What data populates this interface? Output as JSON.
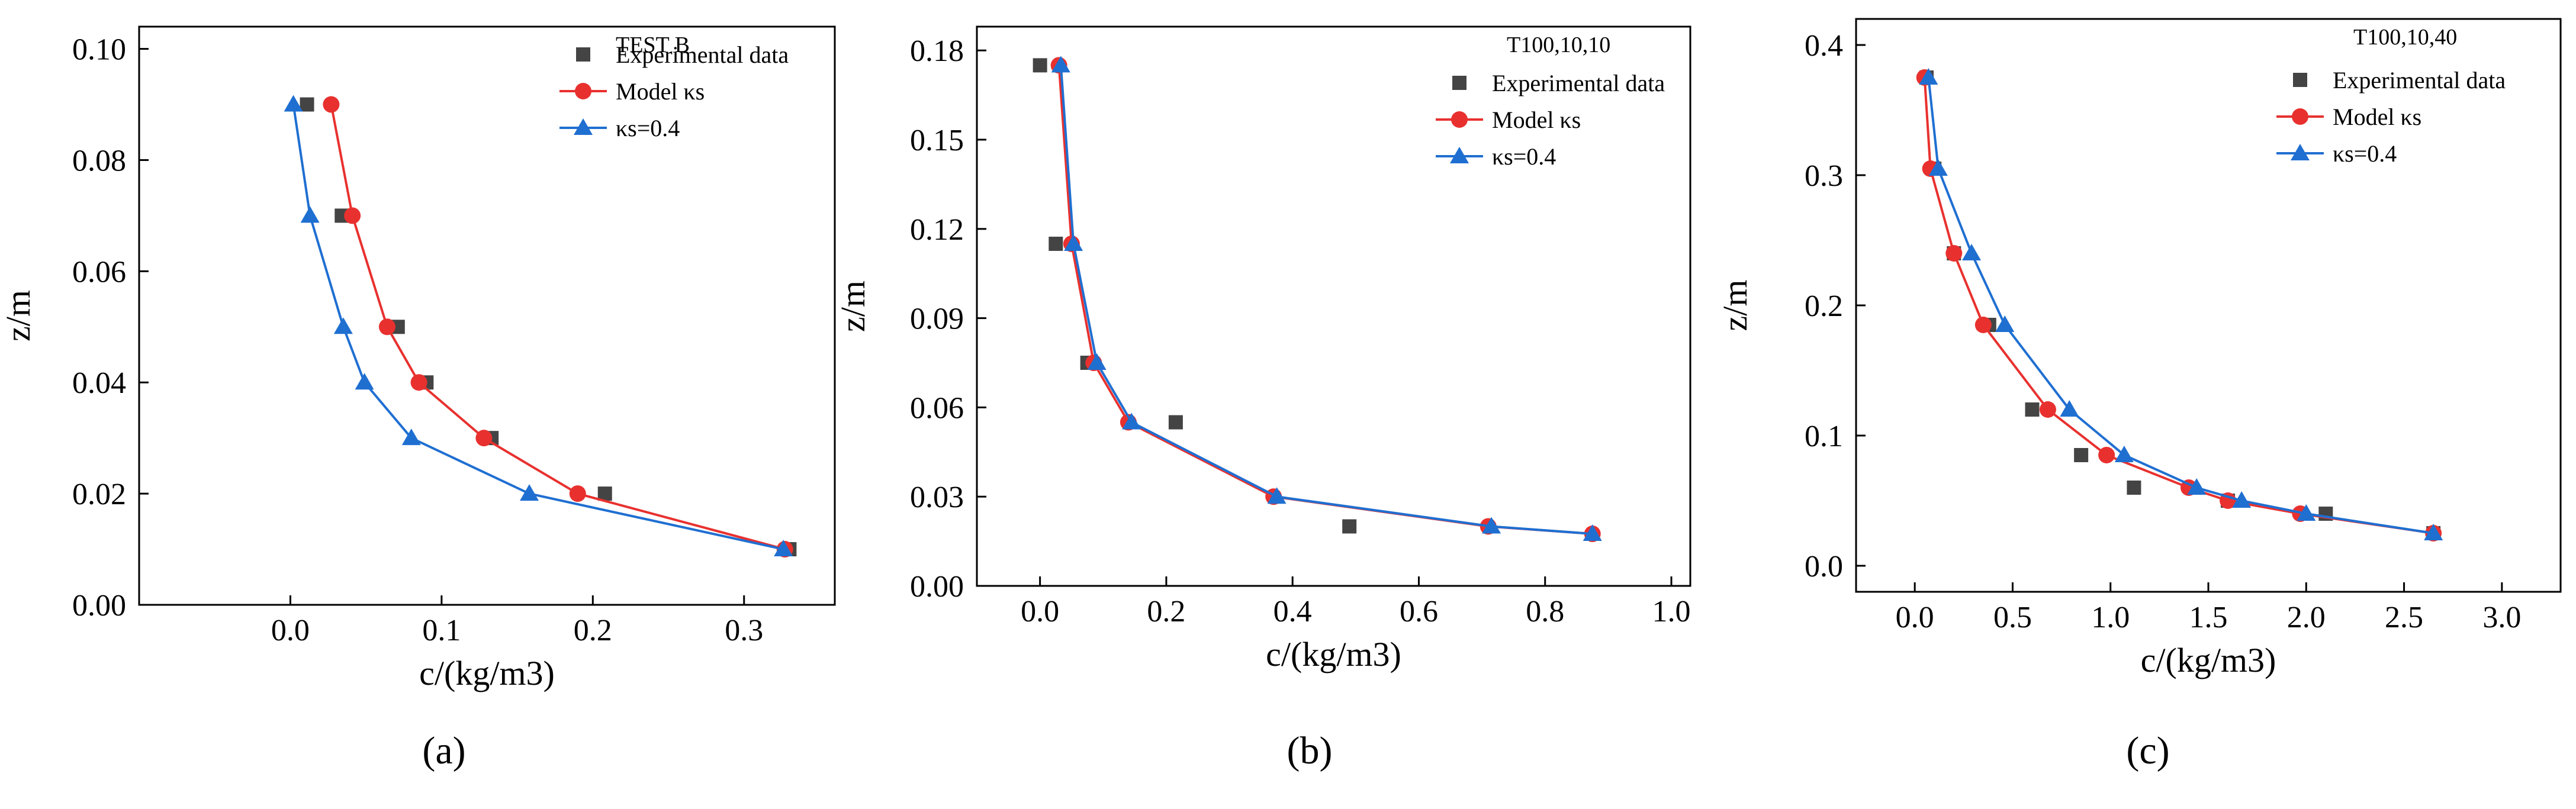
{
  "chart_data": [
    {
      "type": "line",
      "panel_label": "(a)",
      "title": "TEST B",
      "xlabel": "c/(kg/m3)",
      "ylabel": "z/m",
      "xlim": [
        -0.1,
        0.36
      ],
      "ylim": [
        0,
        0.104
      ],
      "xticks": [
        0.0,
        0.1,
        0.2,
        0.3
      ],
      "yticks": [
        0.0,
        0.02,
        0.04,
        0.06,
        0.08,
        0.1
      ],
      "xtick_labels": [
        "0.0",
        "0.1",
        "0.2",
        "0.3"
      ],
      "ytick_labels": [
        "0.00",
        "0.02",
        "0.04",
        "0.06",
        "0.08",
        "0.10"
      ],
      "legend_position": "top-right",
      "series": [
        {
          "name": "Experimental data",
          "kind": "scatter",
          "marker": "square",
          "color": "#444444",
          "x": [
            0.011,
            0.034,
            0.071,
            0.09,
            0.133,
            0.208,
            0.33
          ],
          "y": [
            0.09,
            0.07,
            0.05,
            0.04,
            0.03,
            0.02,
            0.01
          ]
        },
        {
          "name": "Model κs",
          "kind": "line",
          "marker": "circle",
          "color": "#e8312f",
          "x": [
            0.027,
            0.041,
            0.064,
            0.085,
            0.128,
            0.19,
            0.327
          ],
          "y": [
            0.09,
            0.07,
            0.05,
            0.04,
            0.03,
            0.02,
            0.01
          ]
        },
        {
          "name": "κs=0.4",
          "kind": "line",
          "marker": "triangle",
          "color": "#1f6fd1",
          "x": [
            0.002,
            0.013,
            0.035,
            0.049,
            0.08,
            0.158,
            0.326
          ],
          "y": [
            0.09,
            0.07,
            0.05,
            0.04,
            0.03,
            0.02,
            0.01
          ]
        }
      ]
    },
    {
      "type": "line",
      "panel_label": "(b)",
      "title": "T100,10,10",
      "xlabel": "c/(kg/m3)",
      "ylabel": "z/m",
      "xlim": [
        -0.1,
        1.03
      ],
      "ylim": [
        0,
        0.188
      ],
      "xticks": [
        0.0,
        0.2,
        0.4,
        0.6,
        0.8,
        1.0
      ],
      "yticks": [
        0.0,
        0.03,
        0.06,
        0.09,
        0.12,
        0.15,
        0.18
      ],
      "xtick_labels": [
        "0.0",
        "0.2",
        "0.4",
        "0.6",
        "0.8",
        "1.0"
      ],
      "ytick_labels": [
        "0.00",
        "0.03",
        "0.06",
        "0.09",
        "0.12",
        "0.15",
        "0.18"
      ],
      "legend_position": "top-right",
      "series": [
        {
          "name": "Experimental data",
          "kind": "scatter",
          "marker": "square",
          "color": "#444444",
          "x": [
            0.0,
            0.025,
            0.075,
            0.215,
            0.49
          ],
          "y": [
            0.175,
            0.115,
            0.075,
            0.055,
            0.02
          ]
        },
        {
          "name": "Model κs",
          "kind": "line",
          "marker": "circle",
          "color": "#e8312f",
          "x": [
            0.03,
            0.05,
            0.085,
            0.14,
            0.37,
            0.71,
            0.875
          ],
          "y": [
            0.175,
            0.115,
            0.075,
            0.055,
            0.03,
            0.02,
            0.0175
          ]
        },
        {
          "name": "κs=0.4",
          "kind": "line",
          "marker": "triangle",
          "color": "#1f6fd1",
          "x": [
            0.033,
            0.053,
            0.09,
            0.145,
            0.375,
            0.715,
            0.875
          ],
          "y": [
            0.175,
            0.115,
            0.075,
            0.055,
            0.03,
            0.02,
            0.0175
          ]
        }
      ]
    },
    {
      "type": "line",
      "panel_label": "(c)",
      "title": "T100,10,40",
      "xlabel": "c/(kg/m3)",
      "ylabel": "z/m",
      "xlim": [
        -0.3,
        3.3
      ],
      "ylim": [
        -0.02,
        0.42
      ],
      "xticks": [
        0.0,
        0.5,
        1.0,
        1.5,
        2.0,
        2.5,
        3.0
      ],
      "yticks": [
        0.0,
        0.1,
        0.2,
        0.3,
        0.4
      ],
      "xtick_labels": [
        "0.0",
        "0.5",
        "1.0",
        "1.5",
        "2.0",
        "2.5",
        "3.0"
      ],
      "ytick_labels": [
        "0.0",
        "0.1",
        "0.2",
        "0.3",
        "0.4"
      ],
      "legend_position": "top-right",
      "series": [
        {
          "name": "Experimental data",
          "kind": "scatter",
          "marker": "square",
          "color": "#444444",
          "x": [
            0.06,
            0.1,
            0.2,
            0.38,
            0.6,
            0.85,
            1.12,
            1.6,
            2.1,
            2.65
          ],
          "y": [
            0.375,
            0.305,
            0.24,
            0.185,
            0.12,
            0.085,
            0.06,
            0.05,
            0.04,
            0.025
          ]
        },
        {
          "name": "Model κs",
          "kind": "line",
          "marker": "circle",
          "color": "#e8312f",
          "x": [
            0.05,
            0.08,
            0.2,
            0.35,
            0.68,
            0.98,
            1.4,
            1.6,
            1.97,
            2.65
          ],
          "y": [
            0.375,
            0.305,
            0.24,
            0.185,
            0.12,
            0.085,
            0.06,
            0.05,
            0.04,
            0.025
          ]
        },
        {
          "name": "κs=0.4",
          "kind": "line",
          "marker": "triangle",
          "color": "#1f6fd1",
          "x": [
            0.07,
            0.12,
            0.29,
            0.46,
            0.79,
            1.07,
            1.44,
            1.67,
            2.0,
            2.65
          ],
          "y": [
            0.375,
            0.305,
            0.24,
            0.185,
            0.12,
            0.085,
            0.06,
            0.05,
            0.04,
            0.025
          ]
        }
      ]
    }
  ]
}
